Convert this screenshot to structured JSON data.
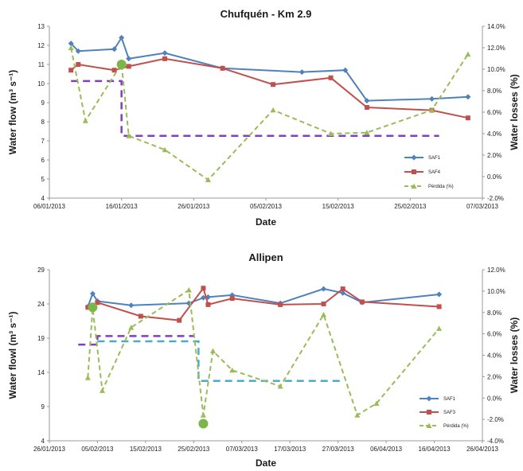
{
  "chart_data": [
    {
      "type": "line",
      "title": "Chufquén - Km 2.9",
      "xlabel": "Date",
      "ylabel": "Water flow (m³ s⁻¹)",
      "y2label": "Water losses (%)",
      "x_ticks": [
        "06/01/2013",
        "16/01/2013",
        "26/01/2013",
        "05/02/2013",
        "15/02/2013",
        "25/02/2013",
        "07/03/2013"
      ],
      "xlim": [
        "2013-01-06",
        "2013-03-07"
      ],
      "ylim": [
        4,
        13
      ],
      "y_ticks": [
        "4",
        "5",
        "6",
        "7",
        "8",
        "9",
        "10",
        "11",
        "12",
        "13"
      ],
      "y2lim": [
        -2,
        14
      ],
      "y2_ticks": [
        "-2.0%",
        "0.0%",
        "2.0%",
        "4.0%",
        "6.0%",
        "8.0%",
        "10.0%",
        "12.0%",
        "14.0%"
      ],
      "legend": {
        "placement": "bottom-right",
        "entries": [
          "SAF1",
          "SAF4",
          "Pérdida (%)"
        ]
      },
      "series": [
        {
          "name": "SAF1",
          "axis": "left",
          "color": "#4f81bd",
          "marker": "diamond",
          "x": [
            "2013-01-09",
            "2013-01-10",
            "2013-01-15",
            "2013-01-16",
            "2013-01-17",
            "2013-01-22",
            "2013-01-30",
            "2013-02-10",
            "2013-02-16",
            "2013-02-19",
            "2013-02-28",
            "2013-03-05"
          ],
          "y": [
            12.1,
            11.7,
            11.8,
            12.4,
            11.3,
            11.6,
            10.8,
            10.6,
            10.7,
            9.1,
            9.2,
            9.3
          ]
        },
        {
          "name": "SAF4",
          "axis": "left",
          "color": "#c0504d",
          "marker": "square",
          "x": [
            "2013-01-09",
            "2013-01-10",
            "2013-01-15",
            "2013-01-17",
            "2013-01-22",
            "2013-01-30",
            "2013-02-06",
            "2013-02-14",
            "2013-02-19",
            "2013-02-28",
            "2013-03-05"
          ],
          "y": [
            10.7,
            11.0,
            10.7,
            10.9,
            11.3,
            10.8,
            9.95,
            10.3,
            8.75,
            8.6,
            8.2
          ]
        },
        {
          "name": "Pérdida (%)",
          "axis": "right",
          "color": "#9bbb59",
          "marker": "triangle",
          "dash": true,
          "x": [
            "2013-01-09",
            "2013-01-11",
            "2013-01-16",
            "2013-01-17",
            "2013-01-22",
            "2013-01-28",
            "2013-02-06",
            "2013-02-14",
            "2013-02-19",
            "2013-02-28",
            "2013-03-05"
          ],
          "y": [
            12.0,
            5.2,
            10.5,
            3.8,
            2.5,
            -0.3,
            6.2,
            4.0,
            4.1,
            6.2,
            11.4
          ]
        }
      ],
      "reference_lines": [
        {
          "color": "#7f3fbf",
          "axis": "right",
          "x": [
            "2013-01-09",
            "2013-01-16",
            "2013-01-16",
            "2013-03-01"
          ],
          "y": [
            8.9,
            8.9,
            3.8,
            3.8
          ]
        }
      ],
      "highlight_points": [
        {
          "axis": "left",
          "x": "2013-01-16",
          "y": 11.0,
          "color": "#7ab648"
        }
      ]
    },
    {
      "type": "line",
      "title": "Allipen",
      "xlabel": "Date",
      "ylabel": "Water flowl (m³ s⁻¹)",
      "y2label": "Water losses (%)",
      "x_ticks": [
        "26/01/2013",
        "05/02/2013",
        "15/02/2013",
        "25/02/2013",
        "07/03/2013",
        "17/03/2013",
        "27/03/2013",
        "06/04/2013",
        "16/04/2013",
        "26/04/2013"
      ],
      "xlim": [
        "2013-01-26",
        "2013-04-26"
      ],
      "ylim": [
        4,
        29
      ],
      "y_ticks": [
        "4",
        "9",
        "14",
        "19",
        "24",
        "29"
      ],
      "y2lim": [
        -4,
        12
      ],
      "y2_ticks": [
        "-4.0%",
        "-2.0%",
        "0.0%",
        "2.0%",
        "4.0%",
        "6.0%",
        "8.0%",
        "10.0%",
        "12.0%"
      ],
      "legend": {
        "placement": "bottom-right",
        "entries": [
          "SAF1",
          "SAF3",
          "Pérdida (%)"
        ]
      },
      "series": [
        {
          "name": "SAF1",
          "axis": "left",
          "color": "#4f81bd",
          "marker": "diamond",
          "x": [
            "2013-02-03",
            "2013-02-04",
            "2013-02-05",
            "2013-02-12",
            "2013-02-24",
            "2013-02-27",
            "2013-02-28",
            "2013-03-05",
            "2013-03-15",
            "2013-03-24",
            "2013-03-28",
            "2013-04-01",
            "2013-04-17"
          ],
          "y": [
            23.6,
            25.5,
            24.4,
            23.8,
            24.1,
            24.9,
            25.0,
            25.3,
            24.1,
            26.2,
            25.6,
            24.2,
            25.4
          ]
        },
        {
          "name": "SAF3",
          "axis": "left",
          "color": "#c0504d",
          "marker": "square",
          "x": [
            "2013-02-03",
            "2013-02-05",
            "2013-02-14",
            "2013-02-22",
            "2013-02-27",
            "2013-02-28",
            "2013-03-05",
            "2013-03-15",
            "2013-03-24",
            "2013-03-28",
            "2013-04-01",
            "2013-04-17"
          ],
          "y": [
            23.5,
            24.2,
            22.2,
            21.6,
            26.3,
            23.9,
            24.8,
            23.9,
            24.0,
            26.2,
            24.3,
            23.6
          ]
        },
        {
          "name": "Pérdida (%)",
          "axis": "right",
          "color": "#9bbb59",
          "marker": "triangle",
          "dash": true,
          "x": [
            "2013-02-03",
            "2013-02-04",
            "2013-02-06",
            "2013-02-12",
            "2013-02-24",
            "2013-02-27",
            "2013-03-01",
            "2013-03-05",
            "2013-03-15",
            "2013-03-24",
            "2013-03-31",
            "2013-04-04",
            "2013-04-17"
          ],
          "y": [
            1.9,
            8.4,
            0.7,
            6.6,
            10.1,
            -1.6,
            4.4,
            2.6,
            1.1,
            7.8,
            -1.6,
            -0.5,
            6.5
          ]
        }
      ],
      "reference_lines": [
        {
          "color": "#7f3fbf",
          "axis": "right",
          "x": [
            "2013-02-01",
            "2013-02-05",
            "2013-02-05",
            "2013-02-25"
          ],
          "y": [
            5.0,
            5.0,
            5.8,
            5.8
          ]
        },
        {
          "color": "#4bacc6",
          "axis": "right",
          "x": [
            "2013-02-05",
            "2013-02-26",
            "2013-02-26",
            "2013-03-28"
          ],
          "y": [
            5.3,
            5.3,
            1.6,
            1.6
          ]
        }
      ],
      "highlight_points": [
        {
          "axis": "left",
          "x": "2013-02-04",
          "y": 23.5,
          "color": "#7ab648"
        },
        {
          "axis": "left",
          "x": "2013-02-27",
          "y": 6.5,
          "color": "#7ab648"
        }
      ]
    }
  ]
}
